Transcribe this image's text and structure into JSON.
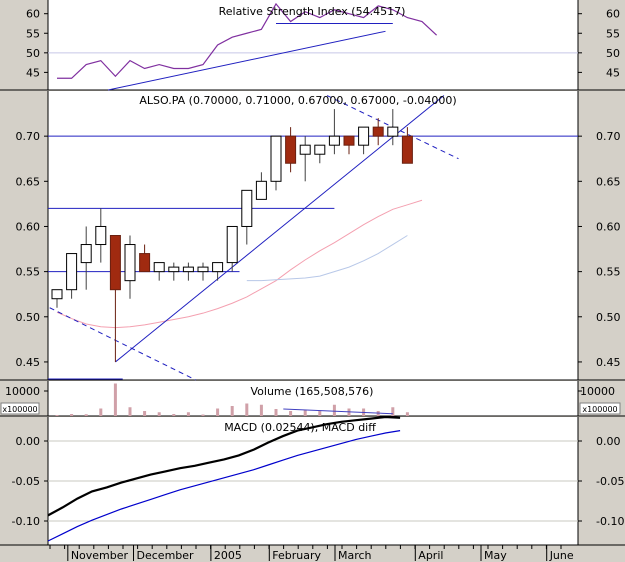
{
  "chart_data": [
    {
      "type": "line",
      "panel": "rsi",
      "title": "Relative Strength Index (54.4517)",
      "yticks": [
        60,
        55,
        50,
        45
      ],
      "ylim": [
        40.5,
        63.5
      ],
      "series": [
        {
          "values": [
            43.5,
            43.5,
            47,
            48,
            44,
            48,
            46,
            47,
            46,
            46,
            47,
            52,
            54,
            55,
            56,
            62.5,
            58,
            60.5,
            59,
            61,
            60,
            59,
            62,
            61,
            59,
            58,
            54.5
          ]
        }
      ],
      "trendlines": [
        {
          "from": [
            3.5,
            40.5
          ],
          "to": [
            22.5,
            55.5
          ]
        },
        {
          "from": [
            15,
            57.5
          ],
          "to": [
            23,
            57.5
          ]
        }
      ]
    },
    {
      "type": "candlestick",
      "panel": "price",
      "title": "ALSO.PA (0.70000, 0.71000, 0.67000, 0.67000, -0.04000)",
      "yticks": [
        0.7,
        0.65,
        0.6,
        0.55,
        0.5,
        0.45
      ],
      "ytick_labels": [
        "0.70",
        "0.65",
        "0.60",
        "0.55",
        "0.50",
        "0.45"
      ],
      "ylim": [
        0.43,
        0.75
      ],
      "ohlc": [
        [
          0.52,
          0.53,
          0.51,
          0.53
        ],
        [
          0.53,
          0.57,
          0.52,
          0.57
        ],
        [
          0.56,
          0.6,
          0.53,
          0.58
        ],
        [
          0.58,
          0.62,
          0.56,
          0.6
        ],
        [
          0.59,
          0.59,
          0.45,
          0.53
        ],
        [
          0.54,
          0.59,
          0.52,
          0.58
        ],
        [
          0.57,
          0.58,
          0.55,
          0.55
        ],
        [
          0.55,
          0.56,
          0.54,
          0.56
        ],
        [
          0.55,
          0.56,
          0.54,
          0.555
        ],
        [
          0.55,
          0.56,
          0.54,
          0.555
        ],
        [
          0.55,
          0.56,
          0.54,
          0.555
        ],
        [
          0.55,
          0.56,
          0.54,
          0.56
        ],
        [
          0.56,
          0.6,
          0.55,
          0.6
        ],
        [
          0.6,
          0.64,
          0.58,
          0.64
        ],
        [
          0.63,
          0.66,
          0.63,
          0.65
        ],
        [
          0.65,
          0.7,
          0.64,
          0.7
        ],
        [
          0.7,
          0.71,
          0.66,
          0.67
        ],
        [
          0.68,
          0.7,
          0.65,
          0.69
        ],
        [
          0.68,
          0.69,
          0.67,
          0.69
        ],
        [
          0.69,
          0.73,
          0.68,
          0.7
        ],
        [
          0.7,
          0.7,
          0.68,
          0.69
        ],
        [
          0.69,
          0.71,
          0.68,
          0.71
        ],
        [
          0.71,
          0.72,
          0.69,
          0.7
        ],
        [
          0.7,
          0.73,
          0.69,
          0.71
        ],
        [
          0.7,
          0.71,
          0.67,
          0.67
        ]
      ],
      "moving_averages": [
        {
          "color": "#f4a0b0",
          "values": [
            0.505,
            0.498,
            0.492,
            0.489,
            0.488,
            0.489,
            0.491,
            0.494,
            0.497,
            0.5,
            0.504,
            0.509,
            0.515,
            0.522,
            0.531,
            0.54,
            0.552,
            0.563,
            0.573,
            0.582,
            0.592,
            0.602,
            0.611,
            0.619,
            0.624,
            0.629
          ]
        },
        {
          "color": "#b8c8e8",
          "values": [
            0.54,
            0.54,
            0.541,
            0.542,
            0.543,
            0.545,
            0.55,
            0.555,
            0.562,
            0.57,
            0.58,
            0.59
          ]
        }
      ],
      "horizontal_lines": [
        0.7,
        0.62,
        0.55
      ],
      "trendlines": [
        {
          "from": [
            4.0,
            0.45
          ],
          "to": [
            26.5,
            0.745
          ],
          "dashed": false
        },
        {
          "from": [
            -0.5,
            0.51
          ],
          "to": [
            9.5,
            0.43
          ],
          "dashed": true
        },
        {
          "from": [
            18.5,
            0.745
          ],
          "to": [
            27.5,
            0.675
          ],
          "dashed": true
        }
      ]
    },
    {
      "type": "bar",
      "panel": "volume",
      "title": "Volume (165,508,576)",
      "ytick_label": "10000",
      "unit_label": "x100000",
      "ylim": [
        0,
        14000
      ],
      "values": [
        400,
        800,
        700,
        3000,
        13000,
        3500,
        2000,
        1500,
        800,
        1500,
        600,
        3000,
        4000,
        5000,
        4500,
        2800,
        2000,
        2500,
        2000,
        4500,
        3000,
        3000,
        2000,
        3500,
        1500
      ]
    },
    {
      "type": "line",
      "panel": "macd",
      "title": "MACD (0.02544), MACD diff",
      "yticks": [
        0.0,
        -0.05,
        -0.1
      ],
      "ytick_labels": [
        "0.00",
        "-0.05",
        "-0.10"
      ],
      "ylim": [
        -0.13,
        0.03
      ],
      "series": [
        {
          "color": "#000000",
          "values": [
            -0.093,
            -0.083,
            -0.072,
            -0.063,
            -0.058,
            -0.052,
            -0.047,
            -0.042,
            -0.038,
            -0.034,
            -0.031,
            -0.027,
            -0.023,
            -0.018,
            -0.011,
            -0.002,
            0.006,
            0.013,
            0.017,
            0.021,
            0.024,
            0.026,
            0.028,
            0.03,
            0.029
          ]
        },
        {
          "color": "#0000cc",
          "values": [
            -0.125,
            -0.116,
            -0.107,
            -0.099,
            -0.092,
            -0.085,
            -0.079,
            -0.073,
            -0.067,
            -0.061,
            -0.056,
            -0.051,
            -0.046,
            -0.041,
            -0.036,
            -0.03,
            -0.024,
            -0.018,
            -0.013,
            -0.008,
            -0.003,
            0.002,
            0.006,
            0.01,
            0.013
          ]
        }
      ]
    }
  ],
  "xaxis": {
    "months": [
      "November",
      "December",
      "2005",
      "February",
      "March",
      "April",
      "May",
      "June"
    ],
    "month_positions": [
      1.7,
      6.2,
      11.5,
      15.5,
      20.0,
      25.5,
      30.0,
      34.5
    ]
  }
}
